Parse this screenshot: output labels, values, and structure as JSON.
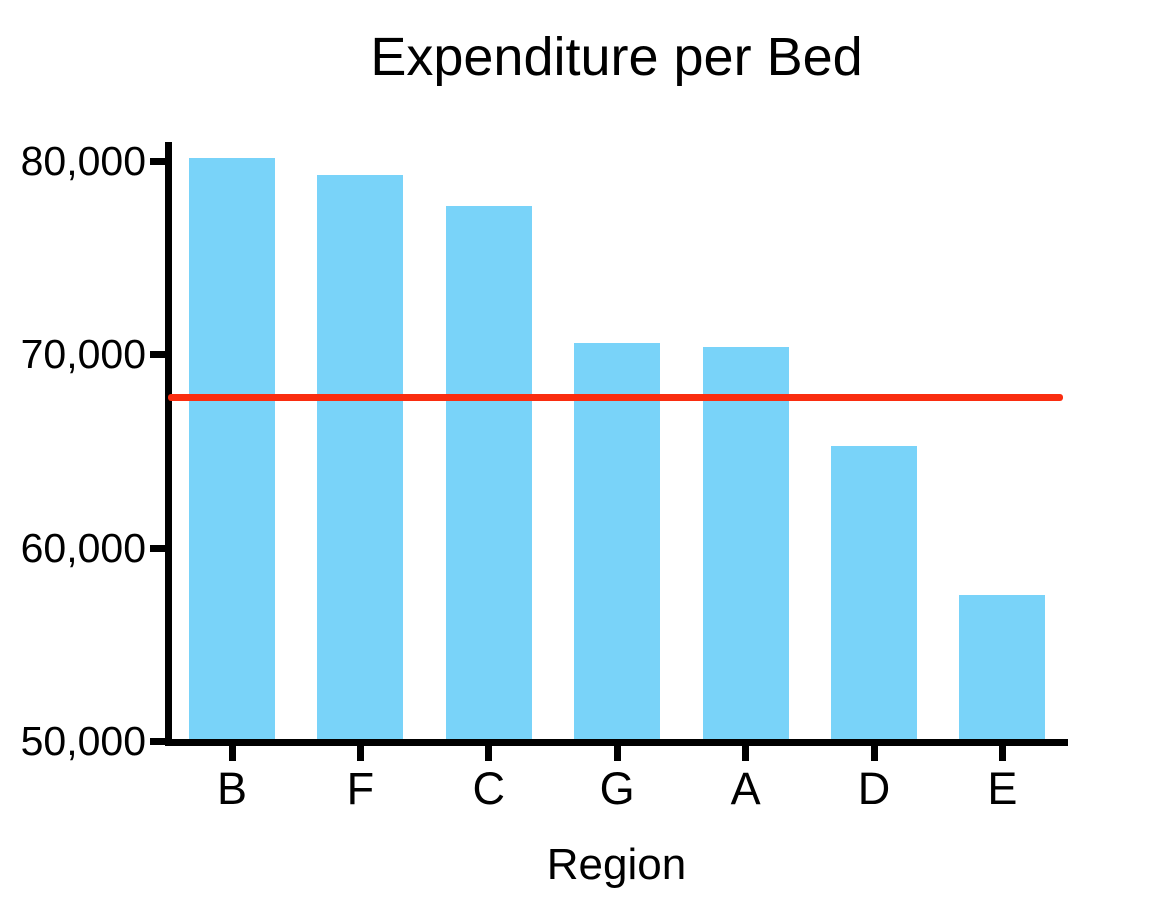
{
  "chart_data": {
    "type": "bar",
    "title": "Expenditure per Bed",
    "xlabel": "Region",
    "ylabel": "",
    "categories": [
      "B",
      "F",
      "C",
      "G",
      "A",
      "D",
      "E"
    ],
    "values": [
      80200,
      79300,
      77700,
      70600,
      70400,
      65300,
      57600
    ],
    "ylim": [
      50000,
      80000
    ],
    "yticks": [
      {
        "value": 80000,
        "label": "80,000"
      },
      {
        "value": 70000,
        "label": "70,000"
      },
      {
        "value": 60000,
        "label": "60,000"
      },
      {
        "value": 50000,
        "label": "50,000"
      }
    ],
    "reference_line": {
      "value": 67800,
      "color": "#FA2D10"
    },
    "bar_color": "#79D3F9",
    "axis_color": "#000000",
    "grid": false,
    "legend": false
  }
}
